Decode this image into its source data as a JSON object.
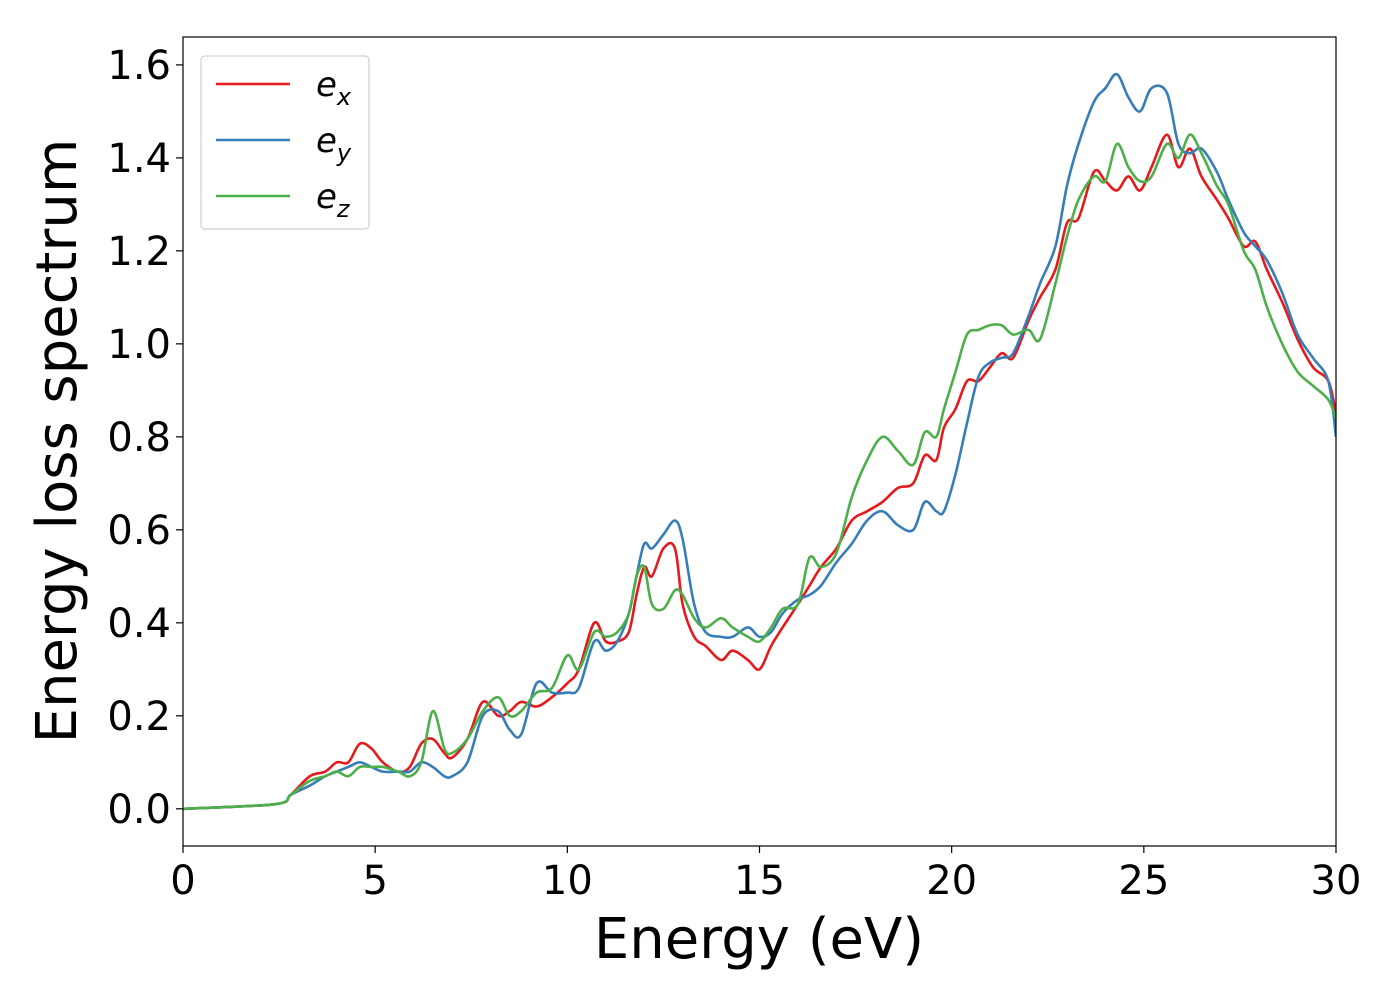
{
  "chart_data": {
    "type": "line",
    "xlabel": "Energy (eV)",
    "ylabel": "Energy loss spectrum",
    "xlim": [
      0,
      30
    ],
    "ylim": [
      -0.08,
      1.66
    ],
    "x_ticks": [
      "0",
      "5",
      "10",
      "15",
      "20",
      "25",
      "30"
    ],
    "y_ticks": [
      "0.0",
      "0.2",
      "0.4",
      "0.6",
      "0.8",
      "1.0",
      "1.2",
      "1.4",
      "1.6"
    ],
    "grid": false,
    "legend_position": "top-left",
    "series": [
      {
        "name": "e",
        "subscript": "x",
        "color": "#e41a1c",
        "x": [
          0,
          2.4,
          2.8,
          3.3,
          3.7,
          4.0,
          4.3,
          4.6,
          4.9,
          5.2,
          5.6,
          5.9,
          6.2,
          6.5,
          6.8,
          7.0,
          7.4,
          7.8,
          8.2,
          8.5,
          8.8,
          9.2,
          9.6,
          10.0,
          10.3,
          10.7,
          11.0,
          11.3,
          11.6,
          11.8,
          12.0,
          12.2,
          12.5,
          12.8,
          13.0,
          13.3,
          13.6,
          14.0,
          14.3,
          14.7,
          15.0,
          15.3,
          15.6,
          16.0,
          16.3,
          16.6,
          17.0,
          17.4,
          17.8,
          18.2,
          18.6,
          19.0,
          19.3,
          19.6,
          19.8,
          20.1,
          20.4,
          20.7,
          21.0,
          21.3,
          21.6,
          22.0,
          22.3,
          22.7,
          23.0,
          23.3,
          23.7,
          24.0,
          24.3,
          24.6,
          24.9,
          25.2,
          25.6,
          25.9,
          26.2,
          26.5,
          26.9,
          27.2,
          27.6,
          27.9,
          28.2,
          28.6,
          29.0,
          29.4,
          29.8,
          30.0
        ],
        "y": [
          0.0,
          0.01,
          0.03,
          0.07,
          0.08,
          0.1,
          0.1,
          0.14,
          0.13,
          0.1,
          0.08,
          0.09,
          0.14,
          0.15,
          0.12,
          0.11,
          0.15,
          0.23,
          0.2,
          0.21,
          0.23,
          0.22,
          0.24,
          0.27,
          0.3,
          0.4,
          0.36,
          0.36,
          0.38,
          0.46,
          0.52,
          0.5,
          0.56,
          0.56,
          0.44,
          0.37,
          0.35,
          0.32,
          0.34,
          0.32,
          0.3,
          0.35,
          0.39,
          0.44,
          0.48,
          0.52,
          0.56,
          0.62,
          0.64,
          0.66,
          0.69,
          0.7,
          0.76,
          0.75,
          0.82,
          0.86,
          0.92,
          0.92,
          0.95,
          0.98,
          0.97,
          1.05,
          1.1,
          1.16,
          1.26,
          1.27,
          1.37,
          1.35,
          1.33,
          1.36,
          1.33,
          1.38,
          1.45,
          1.38,
          1.42,
          1.36,
          1.31,
          1.27,
          1.21,
          1.22,
          1.16,
          1.09,
          1.01,
          0.95,
          0.92,
          0.85
        ]
      },
      {
        "name": "e",
        "subscript": "y",
        "color": "#377eb8",
        "x": [
          0,
          2.4,
          2.8,
          3.3,
          3.7,
          4.0,
          4.3,
          4.6,
          4.9,
          5.2,
          5.6,
          5.9,
          6.2,
          6.5,
          6.8,
          7.0,
          7.4,
          7.8,
          8.2,
          8.5,
          8.8,
          9.2,
          9.6,
          10.0,
          10.3,
          10.7,
          11.0,
          11.3,
          11.6,
          11.8,
          12.0,
          12.2,
          12.5,
          12.8,
          13.0,
          13.3,
          13.6,
          14.0,
          14.3,
          14.7,
          15.0,
          15.3,
          15.6,
          16.0,
          16.3,
          16.6,
          17.0,
          17.4,
          17.8,
          18.2,
          18.6,
          19.0,
          19.3,
          19.6,
          19.8,
          20.1,
          20.4,
          20.7,
          21.0,
          21.3,
          21.6,
          22.0,
          22.3,
          22.7,
          23.0,
          23.3,
          23.7,
          24.0,
          24.3,
          24.6,
          24.9,
          25.2,
          25.6,
          25.9,
          26.2,
          26.5,
          26.9,
          27.2,
          27.6,
          27.9,
          28.2,
          28.6,
          29.0,
          29.4,
          29.8,
          30.0
        ],
        "y": [
          0.0,
          0.01,
          0.03,
          0.05,
          0.07,
          0.08,
          0.09,
          0.1,
          0.09,
          0.08,
          0.08,
          0.08,
          0.1,
          0.09,
          0.07,
          0.07,
          0.1,
          0.2,
          0.21,
          0.17,
          0.16,
          0.27,
          0.25,
          0.25,
          0.26,
          0.36,
          0.34,
          0.36,
          0.42,
          0.5,
          0.57,
          0.56,
          0.59,
          0.62,
          0.58,
          0.44,
          0.38,
          0.37,
          0.37,
          0.39,
          0.37,
          0.38,
          0.42,
          0.45,
          0.46,
          0.48,
          0.53,
          0.57,
          0.62,
          0.64,
          0.61,
          0.6,
          0.66,
          0.64,
          0.64,
          0.72,
          0.83,
          0.93,
          0.96,
          0.97,
          0.98,
          1.06,
          1.13,
          1.21,
          1.34,
          1.43,
          1.52,
          1.55,
          1.58,
          1.53,
          1.5,
          1.55,
          1.54,
          1.43,
          1.41,
          1.42,
          1.37,
          1.31,
          1.24,
          1.21,
          1.18,
          1.11,
          1.02,
          0.97,
          0.92,
          0.8
        ]
      },
      {
        "name": "e",
        "subscript": "z",
        "color": "#4daf4a",
        "x": [
          0,
          2.4,
          2.8,
          3.3,
          3.7,
          4.0,
          4.3,
          4.6,
          4.9,
          5.2,
          5.6,
          5.9,
          6.2,
          6.5,
          6.8,
          7.0,
          7.4,
          7.8,
          8.2,
          8.5,
          8.8,
          9.2,
          9.6,
          10.0,
          10.3,
          10.7,
          11.0,
          11.3,
          11.6,
          11.8,
          12.0,
          12.2,
          12.5,
          12.8,
          13.0,
          13.3,
          13.6,
          14.0,
          14.3,
          14.7,
          15.0,
          15.3,
          15.6,
          16.0,
          16.3,
          16.6,
          17.0,
          17.4,
          17.8,
          18.2,
          18.6,
          19.0,
          19.3,
          19.6,
          19.8,
          20.1,
          20.4,
          20.7,
          21.0,
          21.3,
          21.6,
          22.0,
          22.3,
          22.7,
          23.0,
          23.3,
          23.7,
          24.0,
          24.3,
          24.6,
          24.9,
          25.2,
          25.6,
          25.9,
          26.2,
          26.5,
          26.9,
          27.2,
          27.6,
          27.9,
          28.2,
          28.6,
          29.0,
          29.4,
          29.8,
          30.0
        ],
        "y": [
          0.0,
          0.01,
          0.03,
          0.06,
          0.07,
          0.08,
          0.07,
          0.09,
          0.09,
          0.09,
          0.08,
          0.07,
          0.1,
          0.21,
          0.13,
          0.12,
          0.15,
          0.21,
          0.24,
          0.2,
          0.21,
          0.25,
          0.26,
          0.33,
          0.3,
          0.38,
          0.37,
          0.38,
          0.42,
          0.5,
          0.52,
          0.44,
          0.43,
          0.47,
          0.46,
          0.41,
          0.39,
          0.41,
          0.39,
          0.37,
          0.36,
          0.39,
          0.43,
          0.44,
          0.54,
          0.52,
          0.55,
          0.67,
          0.75,
          0.8,
          0.77,
          0.74,
          0.81,
          0.8,
          0.86,
          0.94,
          1.02,
          1.03,
          1.04,
          1.04,
          1.02,
          1.03,
          1.01,
          1.13,
          1.23,
          1.31,
          1.36,
          1.35,
          1.43,
          1.38,
          1.35,
          1.36,
          1.43,
          1.4,
          1.45,
          1.41,
          1.34,
          1.3,
          1.2,
          1.16,
          1.08,
          1.0,
          0.94,
          0.91,
          0.88,
          0.84
        ]
      }
    ]
  }
}
